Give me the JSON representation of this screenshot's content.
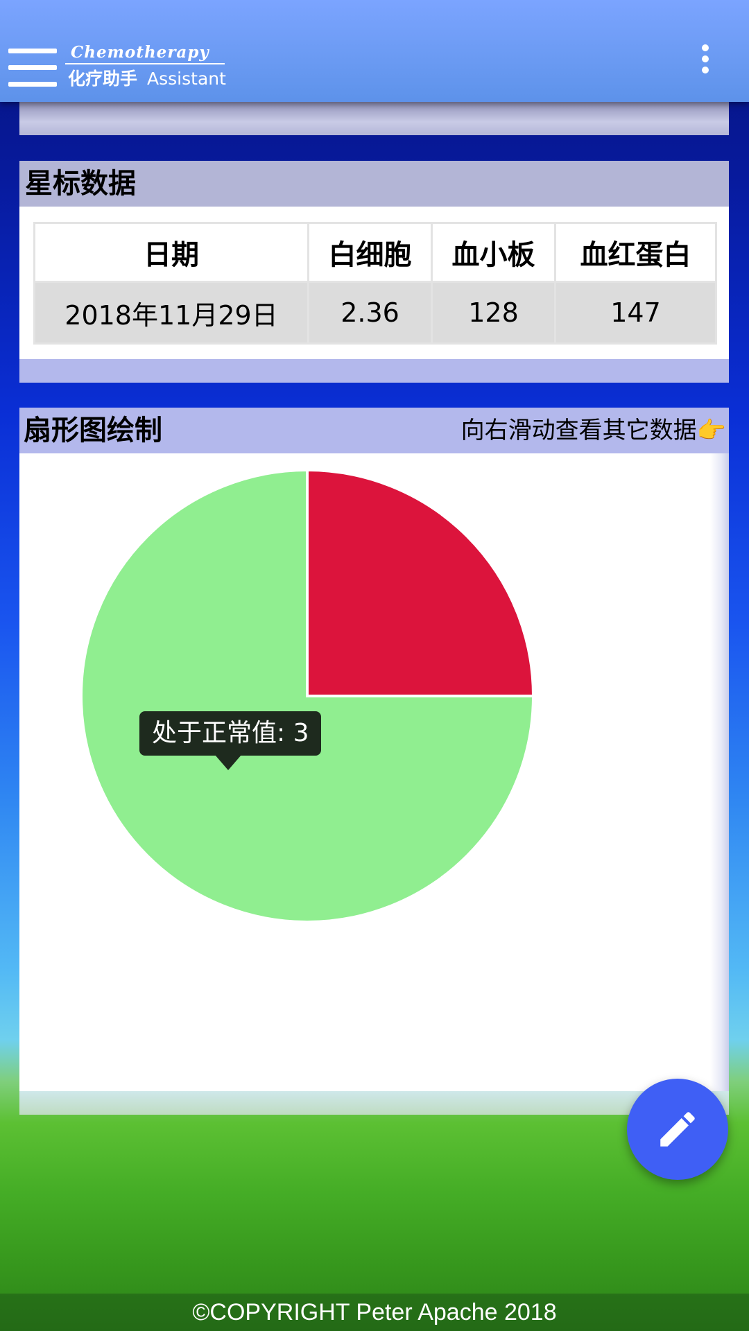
{
  "app": {
    "logo_top": "Chemotherapy",
    "logo_cn": "化疗助手",
    "logo_en": "Assistant",
    "menu_icon": "hamburger-menu-icon",
    "more_icon": "more-vertical-icon"
  },
  "starred": {
    "title": "星标数据",
    "columns": [
      "日期",
      "白细胞",
      "血小板",
      "血红蛋白"
    ],
    "rows": [
      [
        "2018年11月29日",
        "2.36",
        "128",
        "147"
      ]
    ]
  },
  "pie_card": {
    "title": "扇形图绘制",
    "hint": "向右滑动查看其它数据",
    "hint_icon": "👉",
    "tooltip": "处于正常值: 3"
  },
  "chart_data": {
    "type": "pie",
    "slices": [
      {
        "label": "",
        "value": 1,
        "color": "#dc143c"
      },
      {
        "label": "处于正常值",
        "value": 3,
        "color": "#90ee90"
      }
    ]
  },
  "fab": {
    "icon": "pencil-edit-icon",
    "color": "#3f5ff5"
  },
  "footer": {
    "text": "©COPYRIGHT Peter Apache 2018"
  }
}
